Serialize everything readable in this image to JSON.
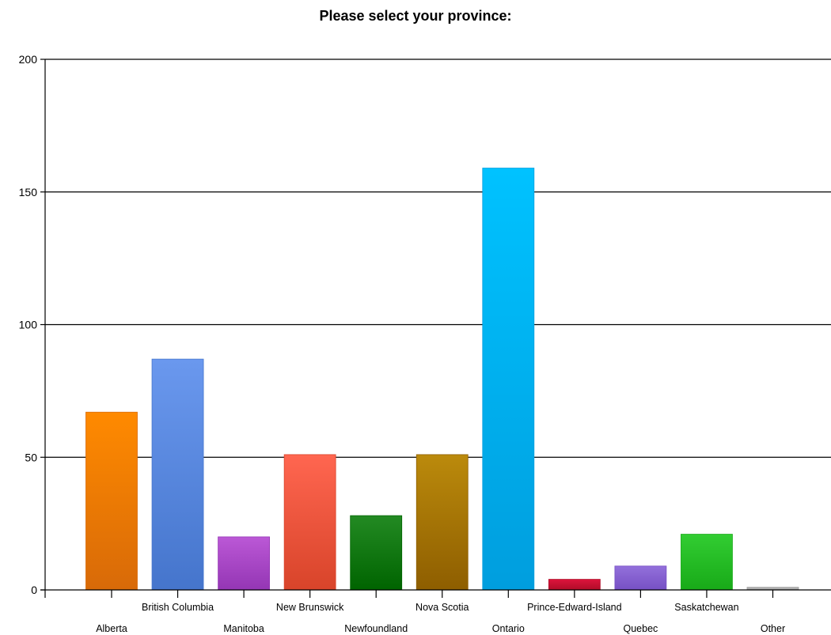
{
  "chart_data": {
    "type": "bar",
    "title": "Please select your province:",
    "xlabel": "",
    "ylabel": "",
    "ylim": [
      0,
      200
    ],
    "yticks": [
      0,
      50,
      100,
      150,
      200
    ],
    "grid": true,
    "categories": [
      "Alberta",
      "British Columbia",
      "Manitoba",
      "New Brunswick",
      "Newfoundland",
      "Nova Scotia",
      "Ontario",
      "Prince-Edward-Island",
      "Quebec",
      "Saskatchewan",
      "Other"
    ],
    "values": [
      67,
      87,
      20,
      51,
      28,
      51,
      159,
      4,
      9,
      21,
      1
    ],
    "colors": [
      [
        "#ff8a00",
        "#d86a08"
      ],
      [
        "#6a98ee",
        "#4575cc"
      ],
      [
        "#bb58d6",
        "#9436b4"
      ],
      [
        "#ff6650",
        "#d8442a"
      ],
      [
        "#238a23",
        "#006400"
      ],
      [
        "#bb8a0c",
        "#8e5e00"
      ],
      [
        "#00c2ff",
        "#009ede"
      ],
      [
        "#dc143c",
        "#b00c28"
      ],
      [
        "#9370db",
        "#7650c4"
      ],
      [
        "#32cd32",
        "#18aa18"
      ],
      [
        "#c0c0c0",
        "#9a9a9a"
      ]
    ]
  }
}
